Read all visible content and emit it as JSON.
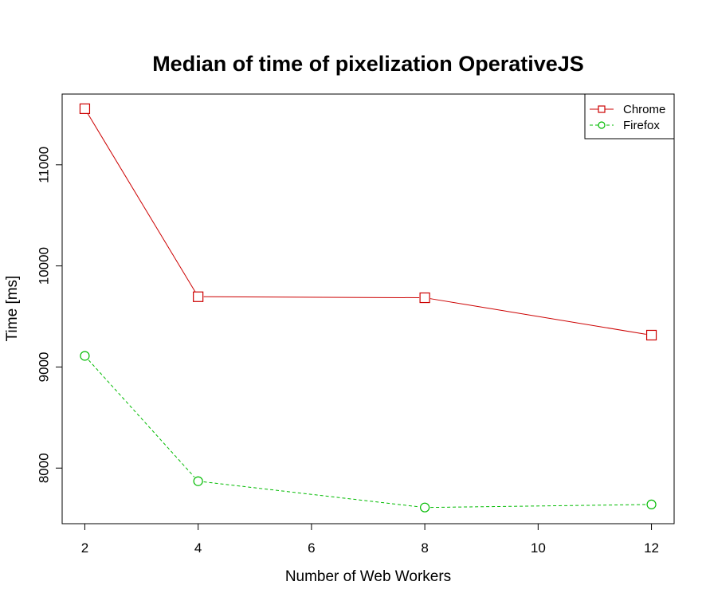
{
  "chart_data": {
    "type": "line",
    "title": "Median of time of pixelization OperativeJS",
    "xlabel": "Number of Web Workers",
    "ylabel": "Time [ms]",
    "x": [
      2,
      4,
      8,
      12
    ],
    "xlim": [
      1.6,
      12.4
    ],
    "ylim": [
      7450,
      11700
    ],
    "xticks": [
      2,
      4,
      6,
      8,
      10,
      12
    ],
    "yticks": [
      8000,
      9000,
      10000,
      11000
    ],
    "series": [
      {
        "name": "Chrome",
        "values": [
          11555,
          9695,
          9685,
          9315
        ],
        "color": "#cc0000",
        "marker": "square",
        "line": "solid"
      },
      {
        "name": "Firefox",
        "values": [
          9110,
          7870,
          7610,
          7640
        ],
        "color": "#00bb00",
        "marker": "circle",
        "line": "dashed"
      }
    ],
    "legend": {
      "position": "top-right"
    },
    "grid": false
  }
}
